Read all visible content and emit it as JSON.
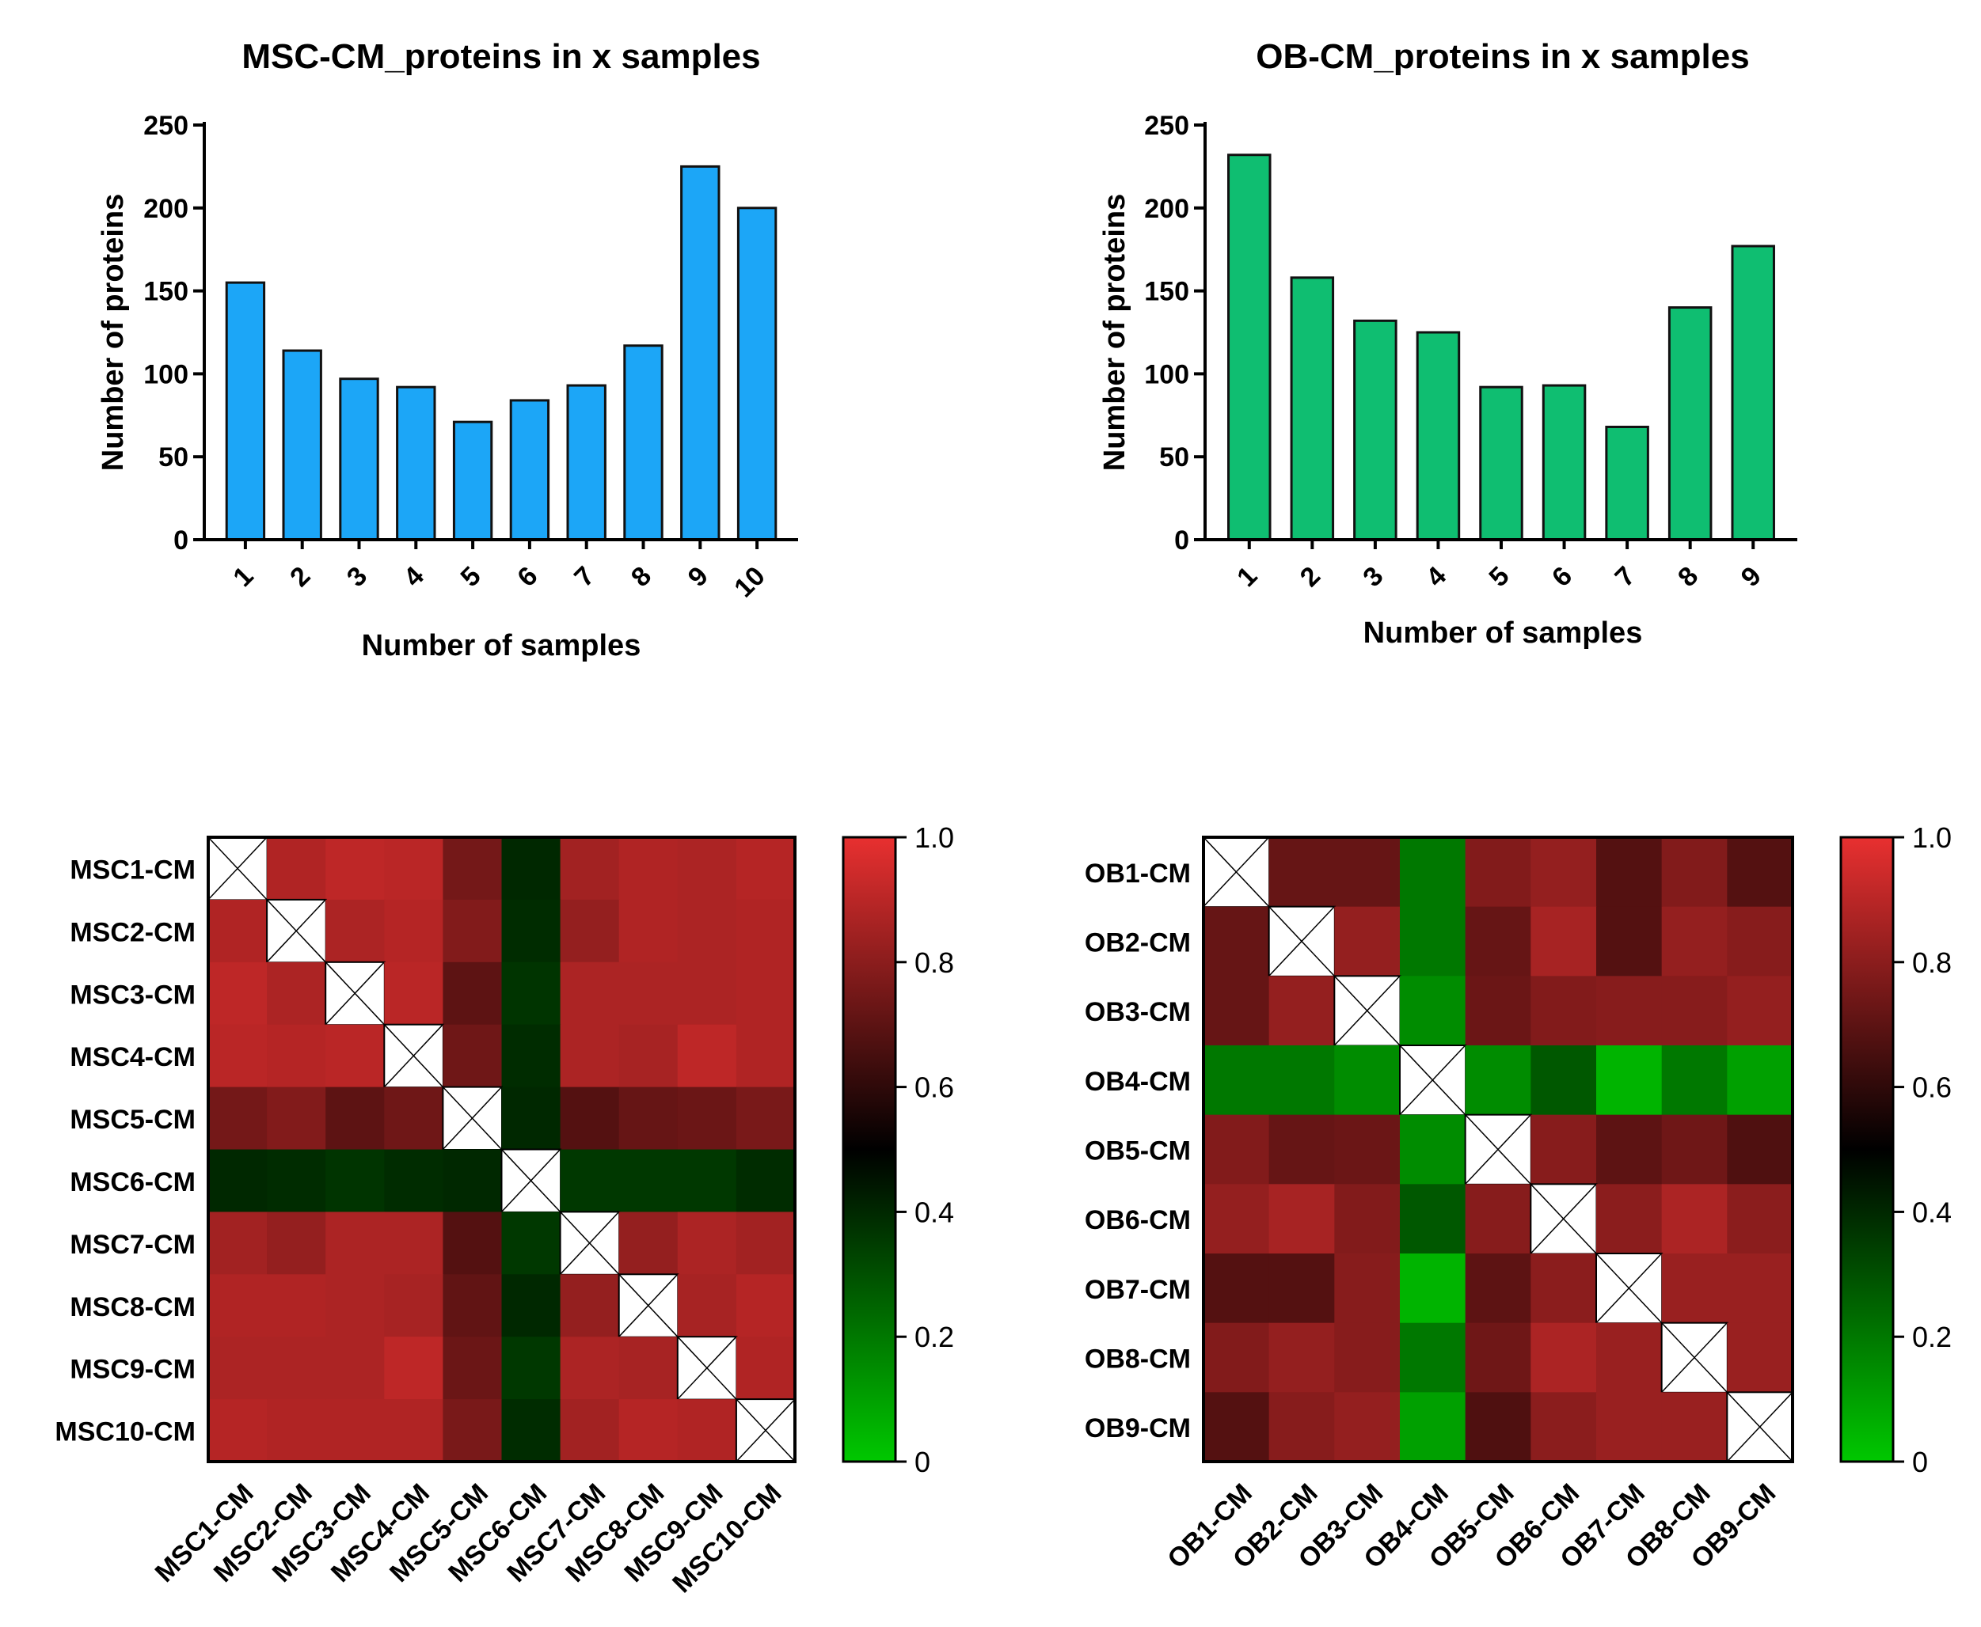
{
  "chart_data": [
    {
      "type": "bar",
      "title": "MSC-CM_proteins in x samples",
      "xlabel": "Number of samples",
      "ylabel": "Number of proteins",
      "categories": [
        "1",
        "2",
        "3",
        "4",
        "5",
        "6",
        "7",
        "8",
        "9",
        "10"
      ],
      "values": [
        155,
        114,
        97,
        92,
        71,
        84,
        93,
        117,
        225,
        200
      ],
      "ylim": [
        0,
        250
      ],
      "yticks": [
        "0",
        "50",
        "100",
        "150",
        "200",
        "250"
      ],
      "color": "#1ca6f7"
    },
    {
      "type": "bar",
      "title": "OB-CM_proteins in x samples",
      "xlabel": "Number of samples",
      "ylabel": "Number of proteins",
      "categories": [
        "1",
        "2",
        "3",
        "4",
        "5",
        "6",
        "7",
        "8",
        "9"
      ],
      "values": [
        232,
        158,
        132,
        125,
        92,
        93,
        68,
        140,
        177
      ],
      "ylim": [
        0,
        250
      ],
      "yticks": [
        "0",
        "50",
        "100",
        "150",
        "200",
        "250"
      ],
      "color": "#0fbe71"
    },
    {
      "type": "heatmap",
      "title": "",
      "labels": [
        "MSC1-CM",
        "MSC2-CM",
        "MSC3-CM",
        "MSC4-CM",
        "MSC5-CM",
        "MSC6-CM",
        "MSC7-CM",
        "MSC8-CM",
        "MSC9-CM",
        "MSC10-CM"
      ],
      "values": [
        [
          null,
          0.88,
          0.91,
          0.9,
          0.75,
          0.4,
          0.85,
          0.88,
          0.87,
          0.89
        ],
        [
          0.88,
          null,
          0.87,
          0.89,
          0.78,
          0.39,
          0.82,
          0.88,
          0.87,
          0.88
        ],
        [
          0.91,
          0.87,
          null,
          0.9,
          0.7,
          0.37,
          0.87,
          0.87,
          0.87,
          0.88
        ],
        [
          0.9,
          0.89,
          0.9,
          null,
          0.74,
          0.39,
          0.87,
          0.86,
          0.91,
          0.88
        ],
        [
          0.75,
          0.78,
          0.7,
          0.74,
          null,
          0.4,
          0.68,
          0.72,
          0.73,
          0.76
        ],
        [
          0.4,
          0.39,
          0.37,
          0.39,
          0.4,
          null,
          0.36,
          0.36,
          0.36,
          0.39
        ],
        [
          0.85,
          0.82,
          0.87,
          0.87,
          0.68,
          0.36,
          null,
          0.82,
          0.87,
          0.85
        ],
        [
          0.88,
          0.88,
          0.87,
          0.86,
          0.71,
          0.4,
          0.82,
          null,
          0.86,
          0.89
        ],
        [
          0.87,
          0.87,
          0.87,
          0.91,
          0.73,
          0.36,
          0.87,
          0.86,
          null,
          0.88
        ],
        [
          0.89,
          0.88,
          0.88,
          0.88,
          0.76,
          0.39,
          0.85,
          0.89,
          0.88,
          null
        ]
      ],
      "colorbar": {
        "min": 0,
        "max": 1,
        "ticks": [
          "0",
          "0.2",
          "0.4",
          "0.6",
          "0.8",
          "1.0"
        ]
      }
    },
    {
      "type": "heatmap",
      "title": "",
      "labels": [
        "OB1-CM",
        "OB2-CM",
        "OB3-CM",
        "OB4-CM",
        "OB5-CM",
        "OB6-CM",
        "OB7-CM",
        "OB8-CM",
        "OB9-CM"
      ],
      "values": [
        [
          null,
          0.72,
          0.72,
          0.2,
          0.78,
          0.82,
          0.68,
          0.78,
          0.68
        ],
        [
          0.72,
          null,
          0.82,
          0.2,
          0.72,
          0.86,
          0.68,
          0.82,
          0.79
        ],
        [
          0.72,
          0.82,
          null,
          0.15,
          0.73,
          0.78,
          0.79,
          0.79,
          0.82
        ],
        [
          0.2,
          0.2,
          0.15,
          null,
          0.15,
          0.28,
          0.05,
          0.2,
          0.1
        ],
        [
          0.78,
          0.72,
          0.73,
          0.15,
          null,
          0.79,
          0.7,
          0.74,
          0.67
        ],
        [
          0.82,
          0.86,
          0.78,
          0.28,
          0.79,
          null,
          0.8,
          0.87,
          0.8
        ],
        [
          0.68,
          0.68,
          0.79,
          0.05,
          0.7,
          0.8,
          null,
          0.83,
          0.83
        ],
        [
          0.78,
          0.82,
          0.79,
          0.2,
          0.74,
          0.87,
          0.83,
          null,
          0.83
        ],
        [
          0.68,
          0.79,
          0.82,
          0.1,
          0.67,
          0.8,
          0.83,
          0.83,
          null
        ]
      ],
      "colorbar": {
        "min": 0,
        "max": 1,
        "ticks": [
          "0",
          "0.2",
          "0.4",
          "0.6",
          "0.8",
          "1.0"
        ]
      }
    }
  ]
}
